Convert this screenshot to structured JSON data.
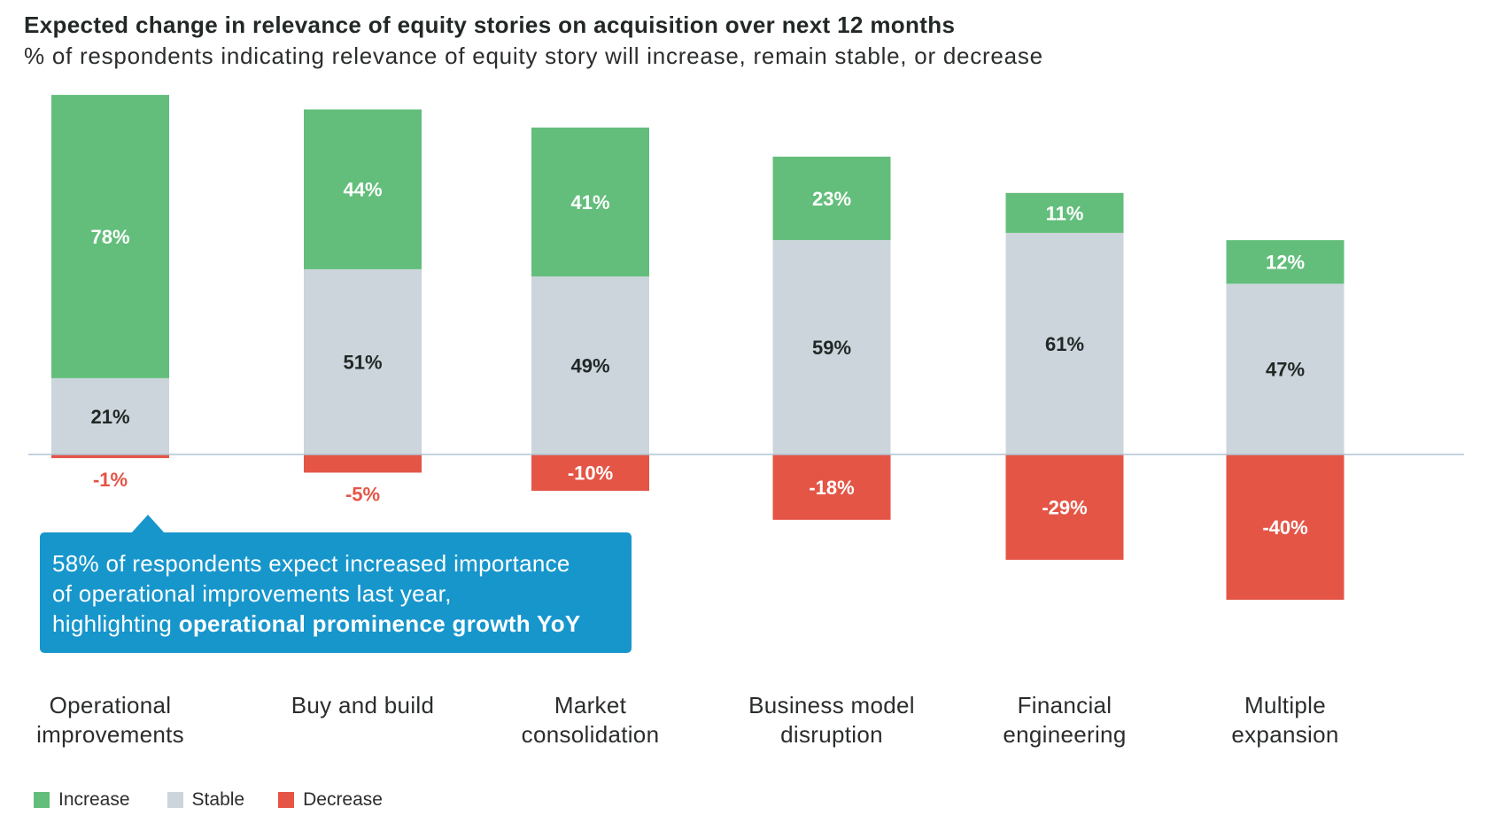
{
  "header": {
    "title": "Expected change in relevance of equity stories on acquisition over next 12 months",
    "subtitle": "% of respondents indicating relevance of equity story will increase, remain stable, or decrease"
  },
  "colors": {
    "increase": "#63BE7B",
    "stable": "#CCD5DC",
    "decrease": "#E45546",
    "baseline": "#B0C4D4",
    "callout": "#1796CC",
    "label_dark": "#222826",
    "label_light": "#FFFFFF"
  },
  "callout": {
    "text_regular": "58% of respondents expect increased importance of operational improvements last year, highlighting ",
    "line1": "58% of respondents expect increased importance",
    "line2": "of operational improvements last year,",
    "line3_regular": "highlighting ",
    "line3_bold": "operational prominence growth YoY",
    "points_to": "Operational improvements"
  },
  "legend": [
    {
      "key": "increase",
      "label": "Increase"
    },
    {
      "key": "stable",
      "label": "Stable"
    },
    {
      "key": "decrease",
      "label": "Decrease"
    }
  ],
  "chart_data": {
    "type": "bar",
    "stacked": true,
    "title": "Expected change in relevance of equity stories on acquisition over next 12 months",
    "subtitle": "% of respondents indicating relevance of equity story will increase, remain stable, or decrease",
    "xlabel": "",
    "ylabel": "",
    "ylim": [
      -40,
      100
    ],
    "grid": false,
    "legend_position": "bottom-left",
    "categories": [
      [
        "Operational",
        "improvements"
      ],
      [
        "Buy and build"
      ],
      [
        "Market",
        "consolidation"
      ],
      [
        "Business model",
        "disruption"
      ],
      [
        "Financial",
        "engineering"
      ],
      [
        "Multiple",
        "expansion"
      ]
    ],
    "series": [
      {
        "name": "Increase",
        "key": "increase",
        "values": [
          78,
          44,
          41,
          23,
          11,
          12
        ],
        "labels": [
          "78%",
          "44%",
          "41%",
          "23%",
          "11%",
          "12%"
        ]
      },
      {
        "name": "Stable",
        "key": "stable",
        "values": [
          21,
          51,
          49,
          59,
          61,
          47
        ],
        "labels": [
          "21%",
          "51%",
          "49%",
          "59%",
          "61%",
          "47%"
        ]
      },
      {
        "name": "Decrease",
        "key": "decrease",
        "values": [
          -1,
          -5,
          -10,
          -18,
          -29,
          -40
        ],
        "labels": [
          "-1%",
          "-5%",
          "-10%",
          "-18%",
          "-29%",
          "-40%"
        ]
      }
    ]
  }
}
